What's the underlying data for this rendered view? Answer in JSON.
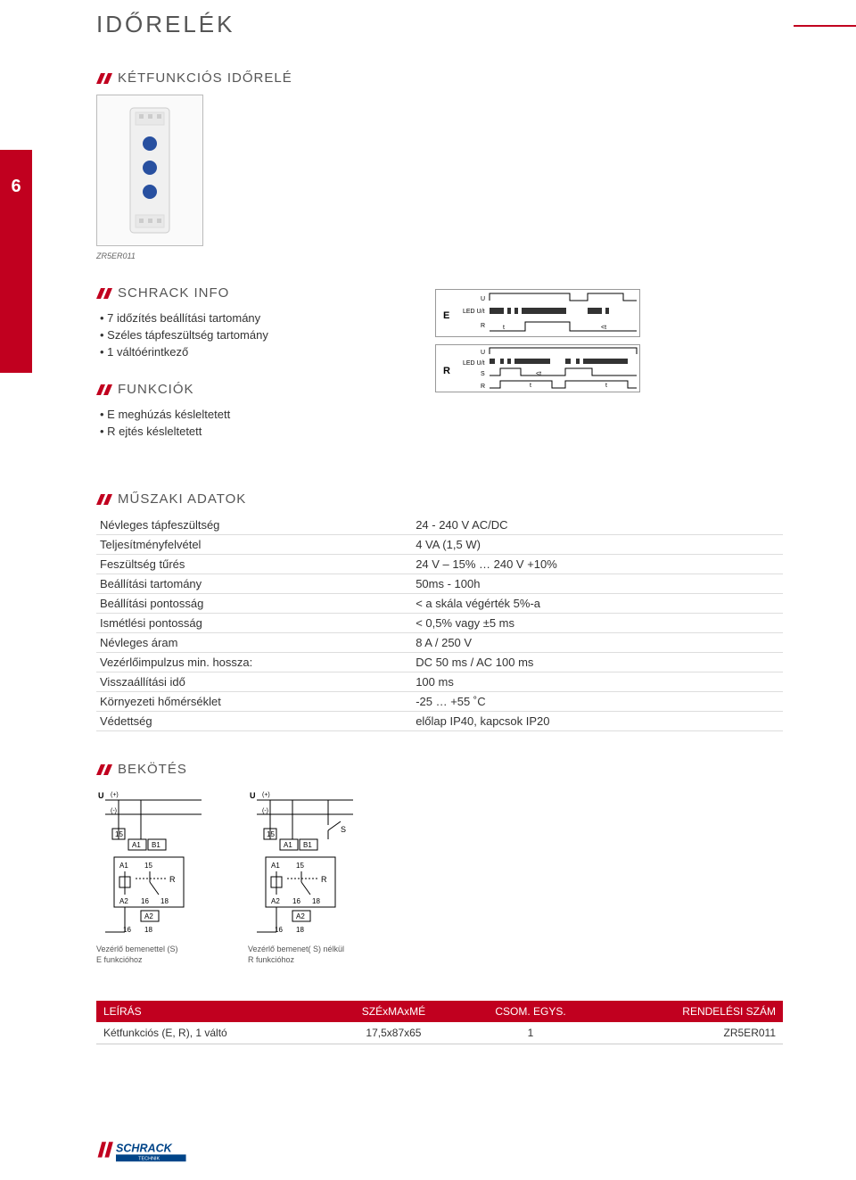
{
  "page": {
    "number": "6",
    "title": "IDŐRELÉK"
  },
  "colors": {
    "accent": "#c1001f",
    "text": "#333333",
    "heading": "#555555",
    "border": "#dddddd"
  },
  "sections": {
    "main_title": "KÉTFUNKCIÓS IDŐRELÉ",
    "schrack_info": "SCHRACK INFO",
    "funkciok": "FUNKCIÓK",
    "muszaki": "MŰSZAKI ADATOK",
    "bekotes": "BEKÖTÉS"
  },
  "product_image_caption": "ZR5ER011",
  "info_bullets": [
    "7 időzítés beállítási tartomány",
    "Széles tápfeszültség tartomány",
    "1 váltóérintkező"
  ],
  "funkciok_bullets": [
    "E  meghúzás késleltetett",
    "R  ejtés késleltetett"
  ],
  "timing_labels": {
    "e": "E",
    "r": "R",
    "u": "U",
    "led": "LED U/t",
    "s": "S",
    "rline": "R"
  },
  "specs": [
    {
      "label": "Névleges tápfeszültség",
      "value": "24 - 240 V AC/DC"
    },
    {
      "label": "Teljesítményfelvétel",
      "value": "4 VA (1,5 W)"
    },
    {
      "label": "Feszültség tűrés",
      "value": "24 V – 15% … 240 V +10%"
    },
    {
      "label": "Beállítási tartomány",
      "value": "50ms - 100h"
    },
    {
      "label": "Beállítási pontosság",
      "value": "< a skála végérték 5%-a"
    },
    {
      "label": "Ismétlési pontosság",
      "value": "< 0,5% vagy ±5 ms"
    },
    {
      "label": "Névleges áram",
      "value": "8 A / 250 V"
    },
    {
      "label": "Vezérlőimpulzus min. hossza:",
      "value": "DC 50 ms / AC 100 ms"
    },
    {
      "label": "Visszaállítási idő",
      "value": "100 ms"
    },
    {
      "label": "Környezeti hőmérséklet",
      "value": "-25 … +55 ˚C"
    },
    {
      "label": "Védettség",
      "value": "előlap IP40, kapcsok IP20"
    }
  ],
  "wiring": [
    {
      "line1": "Vezérlő bemenettel (S)",
      "line2": "E funkcióhoz"
    },
    {
      "line1": "Vezérlő bemenet( S) nélkül",
      "line2": "R funkcióhoz"
    }
  ],
  "wiring_terminals": {
    "top": [
      "15",
      "A1",
      "B1"
    ],
    "mid": [
      "A1",
      "15"
    ],
    "bot1": [
      "A2",
      "16",
      "18"
    ],
    "bot2": [
      "16",
      "18"
    ],
    "s": "S",
    "r": "R",
    "a2": "A2",
    "u": "U",
    "plus": "(+)",
    "minus": "(-)"
  },
  "product_table": {
    "headers": [
      "LEÍRÁS",
      "SZÉxMAxMÉ",
      "CSOM. EGYS.",
      "RENDELÉSI SZÁM"
    ],
    "row": [
      "Kétfunkciós (E, R), 1 váltó",
      "17,5x87x65",
      "1",
      "ZR5ER011"
    ]
  },
  "logo_text": "SCHRACK",
  "logo_sub": "TECHNIK"
}
